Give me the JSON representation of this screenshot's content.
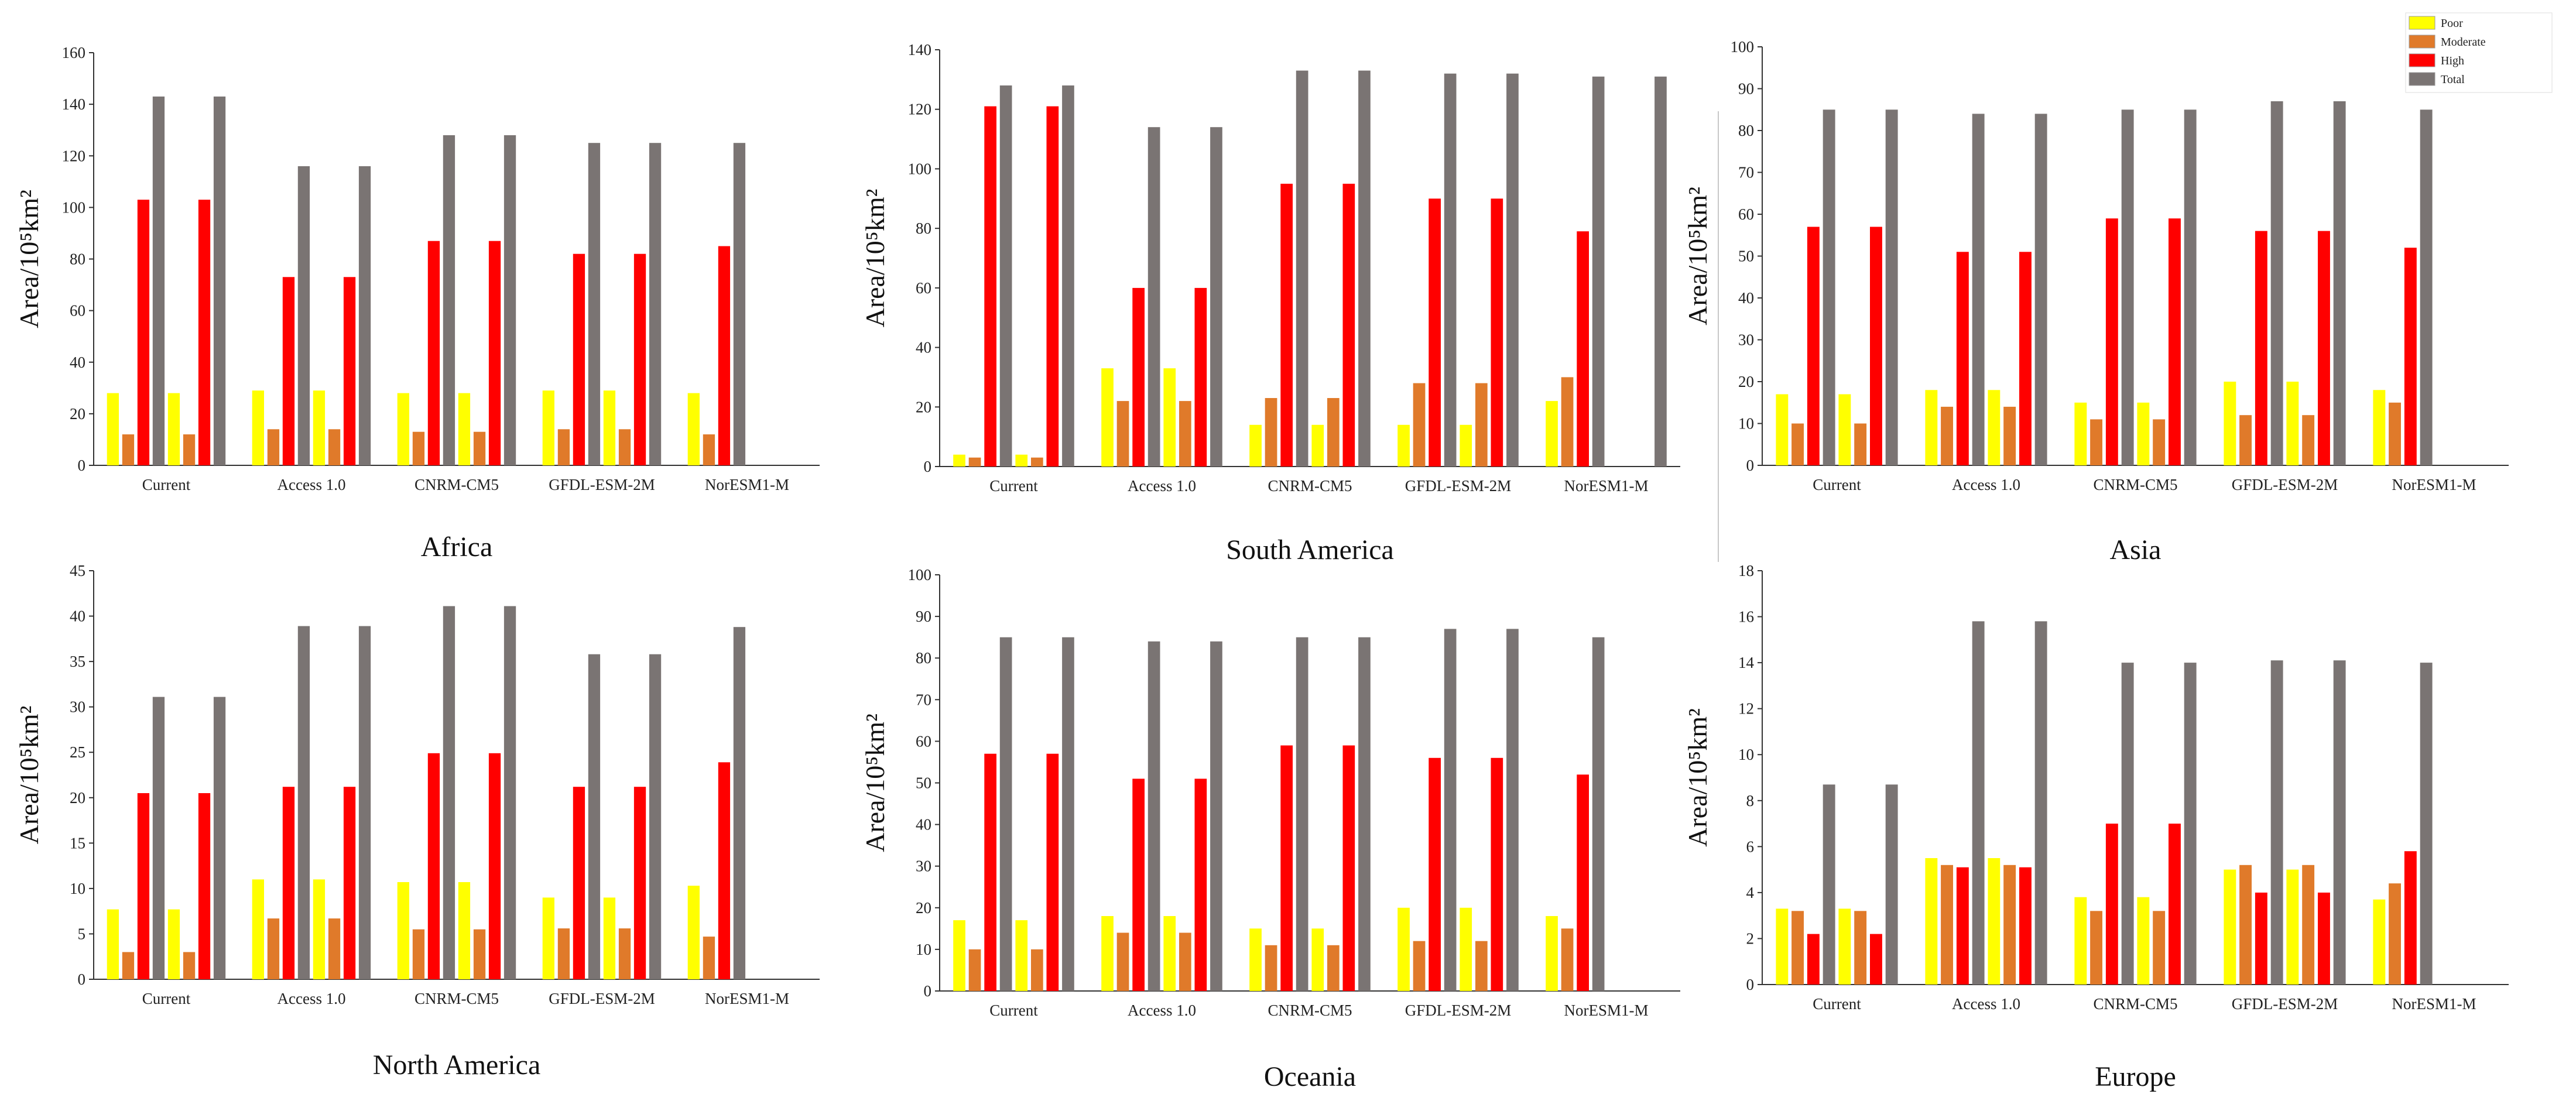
{
  "colors": {
    "Poor": "#ffff00",
    "Moderate": "#e07a2a",
    "High": "#ff0000",
    "Total": "#7a7473"
  },
  "legend": {
    "items": [
      "Poor",
      "Moderate",
      "High",
      "Total"
    ],
    "placement": "top-right"
  },
  "chart_data": [
    {
      "type": "bar",
      "title": "Africa",
      "ylabel": "Area/10⁵km²",
      "ylim": [
        0,
        160
      ],
      "yticks": [
        0,
        20,
        40,
        60,
        80,
        100,
        120,
        140,
        160
      ],
      "categories": [
        "Current",
        "Access 1.0",
        "CNRM-CM5",
        "GFDL-ESM-2M",
        "NorESM1-M"
      ],
      "series": [
        {
          "name": "Poor",
          "values": [
            28,
            29,
            28,
            29,
            28
          ]
        },
        {
          "name": "Moderate",
          "values": [
            12,
            14,
            13,
            14,
            12
          ]
        },
        {
          "name": "High",
          "values": [
            103,
            73,
            87,
            82,
            85
          ]
        },
        {
          "name": "Total",
          "values": [
            143,
            116,
            128,
            125,
            125
          ]
        },
        {
          "name": "Poor",
          "values": [
            28,
            29,
            28,
            29,
            null
          ]
        },
        {
          "name": "Moderate",
          "values": [
            12,
            14,
            13,
            14,
            null
          ]
        },
        {
          "name": "High",
          "values": [
            103,
            73,
            87,
            82,
            null
          ]
        },
        {
          "name": "Total",
          "values": [
            143,
            116,
            128,
            125,
            null
          ]
        }
      ]
    },
    {
      "type": "bar",
      "title": "South America",
      "ylabel": "Area/10⁵km²",
      "ylim": [
        0,
        140
      ],
      "yticks": [
        0,
        20,
        40,
        60,
        80,
        100,
        120,
        140
      ],
      "categories": [
        "Current",
        "Access 1.0",
        "CNRM-CM5",
        "GFDL-ESM-2M",
        "NorESM1-M"
      ],
      "series": [
        {
          "name": "Poor",
          "values": [
            4,
            33,
            14,
            14,
            22
          ]
        },
        {
          "name": "Moderate",
          "values": [
            3,
            22,
            23,
            28,
            30
          ]
        },
        {
          "name": "High",
          "values": [
            121,
            60,
            95,
            90,
            79
          ]
        },
        {
          "name": "Total",
          "values": [
            128,
            114,
            133,
            132,
            131
          ]
        },
        {
          "name": "Poor",
          "values": [
            4,
            33,
            14,
            14,
            null
          ]
        },
        {
          "name": "Moderate",
          "values": [
            3,
            22,
            23,
            28,
            null
          ]
        },
        {
          "name": "High",
          "values": [
            121,
            60,
            95,
            90,
            null
          ]
        },
        {
          "name": "Total",
          "values": [
            128,
            114,
            133,
            132,
            131
          ]
        }
      ]
    },
    {
      "type": "bar",
      "title": "Asia",
      "ylabel": "Area/10⁵km²",
      "ylim": [
        0,
        100
      ],
      "yticks": [
        0,
        10,
        20,
        30,
        40,
        50,
        60,
        70,
        80,
        90,
        100
      ],
      "categories": [
        "Current",
        "Access 1.0",
        "CNRM-CM5",
        "GFDL-ESM-2M",
        "NorESM1-M"
      ],
      "series": [
        {
          "name": "Poor",
          "values": [
            17,
            18,
            15,
            20,
            18
          ]
        },
        {
          "name": "Moderate",
          "values": [
            10,
            14,
            11,
            12,
            15
          ]
        },
        {
          "name": "High",
          "values": [
            57,
            51,
            59,
            56,
            52
          ]
        },
        {
          "name": "Total",
          "values": [
            85,
            84,
            85,
            87,
            85
          ]
        },
        {
          "name": "Poor",
          "values": [
            17,
            18,
            15,
            20,
            null
          ]
        },
        {
          "name": "Moderate",
          "values": [
            10,
            14,
            11,
            12,
            null
          ]
        },
        {
          "name": "High",
          "values": [
            57,
            51,
            59,
            56,
            null
          ]
        },
        {
          "name": "Total",
          "values": [
            85,
            84,
            85,
            87,
            null
          ]
        }
      ]
    },
    {
      "type": "bar",
      "title": "North America",
      "ylabel": "Area/10⁵km²",
      "ylim": [
        0,
        45
      ],
      "yticks": [
        0,
        5,
        10,
        15,
        20,
        25,
        30,
        35,
        40,
        45
      ],
      "categories": [
        "Current",
        "Access 1.0",
        "CNRM-CM5",
        "GFDL-ESM-2M",
        "NorESM1-M"
      ],
      "series": [
        {
          "name": "Poor",
          "values": [
            7.7,
            11,
            10.7,
            9,
            10.3
          ]
        },
        {
          "name": "Moderate",
          "values": [
            3,
            6.7,
            5.5,
            5.6,
            4.7
          ]
        },
        {
          "name": "High",
          "values": [
            20.5,
            21.2,
            24.9,
            21.2,
            23.9
          ]
        },
        {
          "name": "Total",
          "values": [
            31.1,
            38.9,
            41.1,
            35.8,
            38.8
          ]
        },
        {
          "name": "Poor",
          "values": [
            7.7,
            11,
            10.7,
            9,
            null
          ]
        },
        {
          "name": "Moderate",
          "values": [
            3,
            6.7,
            5.5,
            5.6,
            null
          ]
        },
        {
          "name": "High",
          "values": [
            20.5,
            21.2,
            24.9,
            21.2,
            null
          ]
        },
        {
          "name": "Total",
          "values": [
            31.1,
            38.9,
            41.1,
            35.8,
            null
          ]
        }
      ]
    },
    {
      "type": "bar",
      "title": "Oceania",
      "ylabel": "Area/10⁵km²",
      "ylim": [
        0,
        100
      ],
      "yticks": [
        0,
        10,
        20,
        30,
        40,
        50,
        60,
        70,
        80,
        90,
        100
      ],
      "categories": [
        "Current",
        "Access 1.0",
        "CNRM-CM5",
        "GFDL-ESM-2M",
        "NorESM1-M"
      ],
      "series": [
        {
          "name": "Poor",
          "values": [
            17,
            18,
            15,
            20,
            18
          ]
        },
        {
          "name": "Moderate",
          "values": [
            10,
            14,
            11,
            12,
            15
          ]
        },
        {
          "name": "High",
          "values": [
            57,
            51,
            59,
            56,
            52
          ]
        },
        {
          "name": "Total",
          "values": [
            85,
            84,
            85,
            87,
            85
          ]
        },
        {
          "name": "Poor",
          "values": [
            17,
            18,
            15,
            20,
            null
          ]
        },
        {
          "name": "Moderate",
          "values": [
            10,
            14,
            11,
            12,
            null
          ]
        },
        {
          "name": "High",
          "values": [
            57,
            51,
            59,
            56,
            null
          ]
        },
        {
          "name": "Total",
          "values": [
            85,
            84,
            85,
            87,
            null
          ]
        }
      ]
    },
    {
      "type": "bar",
      "title": "Europe",
      "ylabel": "Area/10⁵km²",
      "ylim": [
        0,
        18
      ],
      "yticks": [
        0,
        2,
        4,
        6,
        8,
        10,
        12,
        14,
        16,
        18
      ],
      "categories": [
        "Current",
        "Access 1.0",
        "CNRM-CM5",
        "GFDL-ESM-2M",
        "NorESM1-M"
      ],
      "series": [
        {
          "name": "Poor",
          "values": [
            3.3,
            5.5,
            3.8,
            5,
            3.7
          ]
        },
        {
          "name": "Moderate",
          "values": [
            3.2,
            5.2,
            3.2,
            5.2,
            4.4
          ]
        },
        {
          "name": "High",
          "values": [
            2.2,
            5.1,
            7,
            4,
            5.8
          ]
        },
        {
          "name": "Total",
          "values": [
            8.7,
            15.8,
            14,
            14.1,
            14
          ]
        },
        {
          "name": "Poor",
          "values": [
            3.3,
            5.5,
            3.8,
            5,
            null
          ]
        },
        {
          "name": "Moderate",
          "values": [
            3.2,
            5.2,
            3.2,
            5.2,
            null
          ]
        },
        {
          "name": "High",
          "values": [
            2.2,
            5.1,
            7,
            4,
            null
          ]
        },
        {
          "name": "Total",
          "values": [
            8.7,
            15.8,
            14,
            14.1,
            null
          ]
        }
      ]
    }
  ]
}
